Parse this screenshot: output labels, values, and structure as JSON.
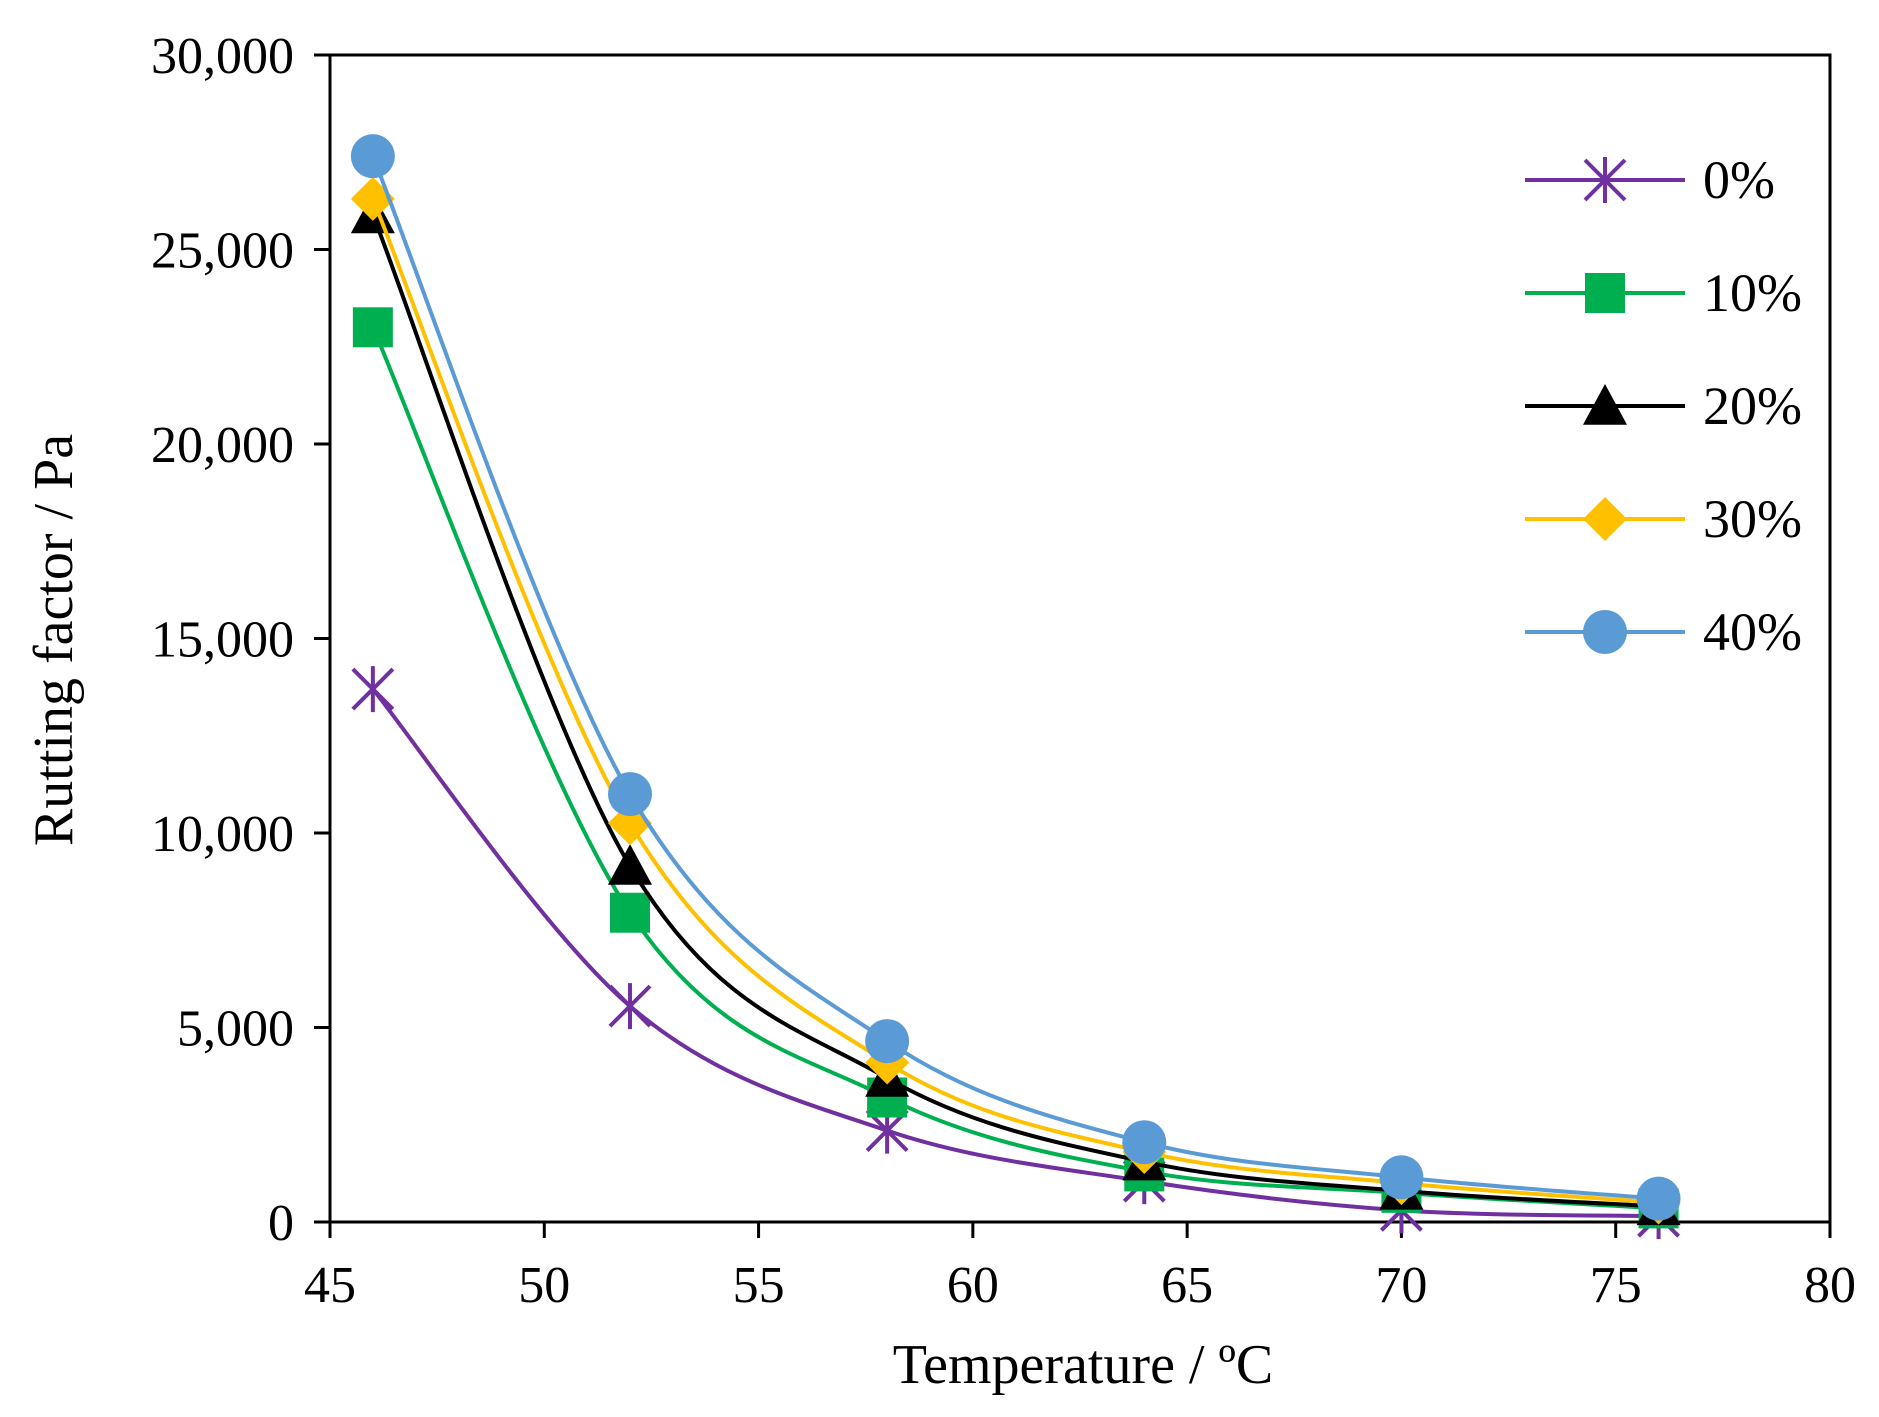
{
  "chart_data": {
    "type": "line",
    "title": "",
    "xlabel": "Temperature / ºC",
    "ylabel": "Rutting factor / Pa",
    "xlim": [
      45,
      80
    ],
    "ylim": [
      0,
      30000
    ],
    "x_ticks": [
      45,
      50,
      55,
      60,
      65,
      70,
      75,
      80
    ],
    "x_tick_labels": [
      "45",
      "50",
      "55",
      "60",
      "65",
      "70",
      "75",
      "80"
    ],
    "y_ticks": [
      0,
      5000,
      10000,
      15000,
      20000,
      25000,
      30000
    ],
    "y_tick_labels": [
      "0",
      "5,000",
      "10,000",
      "15,000",
      "20,000",
      "25,000",
      "30,000"
    ],
    "grid": false,
    "legend_position": "top-right",
    "x": [
      46,
      52,
      58,
      64,
      70,
      76
    ],
    "series": [
      {
        "name": "0%",
        "color": "#7030A0",
        "marker": "asterisk",
        "values": [
          13700,
          5550,
          2350,
          1050,
          300,
          150
        ]
      },
      {
        "name": "10%",
        "color": "#00B050",
        "marker": "square",
        "values": [
          23000,
          7950,
          3200,
          1300,
          750,
          350
        ]
      },
      {
        "name": "20%",
        "color": "#000000",
        "marker": "triangle",
        "values": [
          25900,
          9150,
          3700,
          1550,
          800,
          400
        ]
      },
      {
        "name": "30%",
        "color": "#FFC000",
        "marker": "diamond",
        "values": [
          26300,
          10250,
          4100,
          1800,
          1000,
          500
        ]
      },
      {
        "name": "40%",
        "color": "#5B9BD5",
        "marker": "circle",
        "values": [
          27400,
          11000,
          4650,
          2050,
          1150,
          600
        ]
      }
    ]
  }
}
